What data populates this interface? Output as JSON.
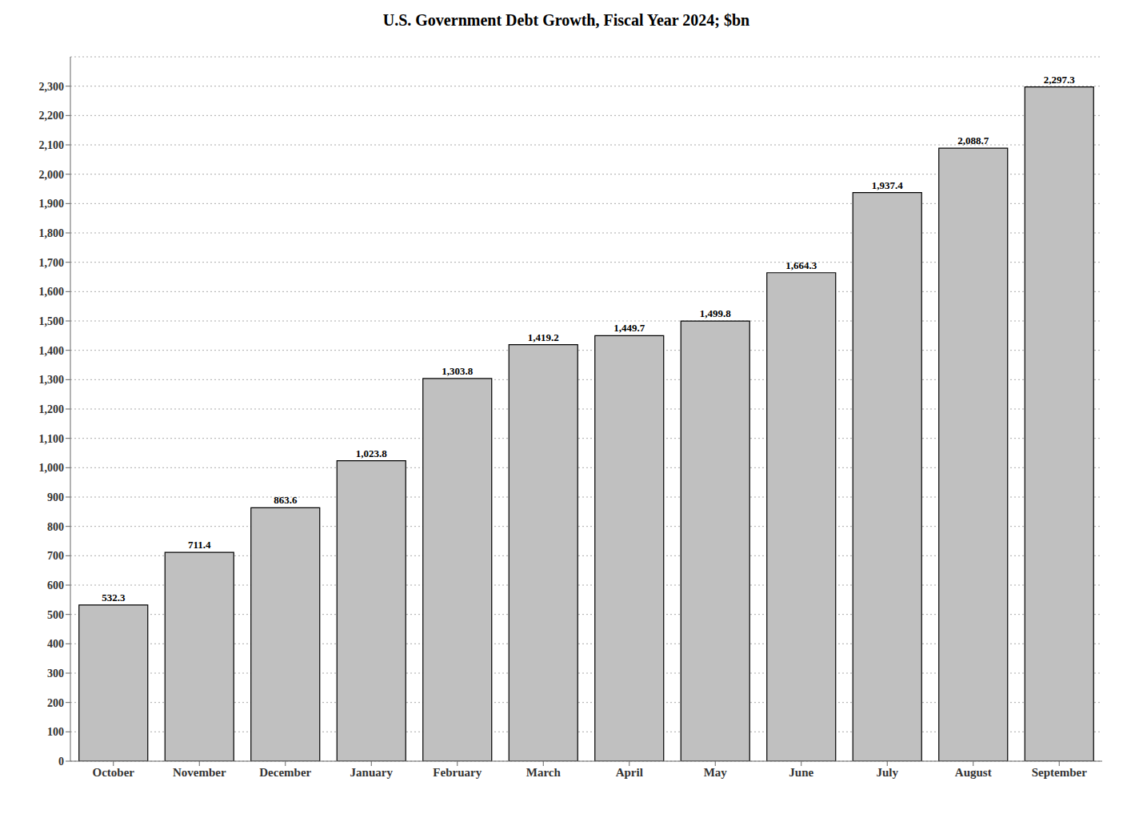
{
  "chart_data": {
    "type": "bar",
    "title": "U.S. Government Debt Growth, Fiscal Year 2024; $bn",
    "categories": [
      "October",
      "November",
      "December",
      "January",
      "February",
      "March",
      "April",
      "May",
      "June",
      "July",
      "August",
      "September"
    ],
    "values": [
      532.3,
      711.4,
      863.6,
      1023.8,
      1303.8,
      1419.2,
      1449.7,
      1499.8,
      1664.3,
      1937.4,
      2088.7,
      2297.3
    ],
    "value_labels": [
      "532.3",
      "711.4",
      "863.6",
      "1,023.8",
      "1,303.8",
      "1,419.2",
      "1,449.7",
      "1,499.8",
      "1,664.3",
      "1,937.4",
      "2,088.7",
      "2,297.3"
    ],
    "data_labels": true,
    "color": "#c0c0c0",
    "ylim": [
      0,
      2400
    ],
    "yticks": [
      0,
      100,
      200,
      300,
      400,
      500,
      600,
      700,
      800,
      900,
      {
        "value": 1000,
        "label": "1,000"
      },
      {
        "value": 1100,
        "label": "1,100"
      },
      {
        "value": 1200,
        "label": "1,200"
      },
      {
        "value": 1300,
        "label": "1,300"
      },
      {
        "value": 1400,
        "label": "1,400"
      },
      {
        "value": 1500,
        "label": "1,500"
      },
      {
        "value": 1600,
        "label": "1,600"
      },
      {
        "value": 1700,
        "label": "1,700"
      },
      {
        "value": 1800,
        "label": "1,800"
      },
      {
        "value": 1900,
        "label": "1,900"
      },
      {
        "value": 2000,
        "label": "2,000"
      },
      {
        "value": 2100,
        "label": "2,100"
      },
      {
        "value": 2200,
        "label": "2,200"
      },
      {
        "value": 2300,
        "label": "2,300"
      }
    ],
    "grid": true
  }
}
